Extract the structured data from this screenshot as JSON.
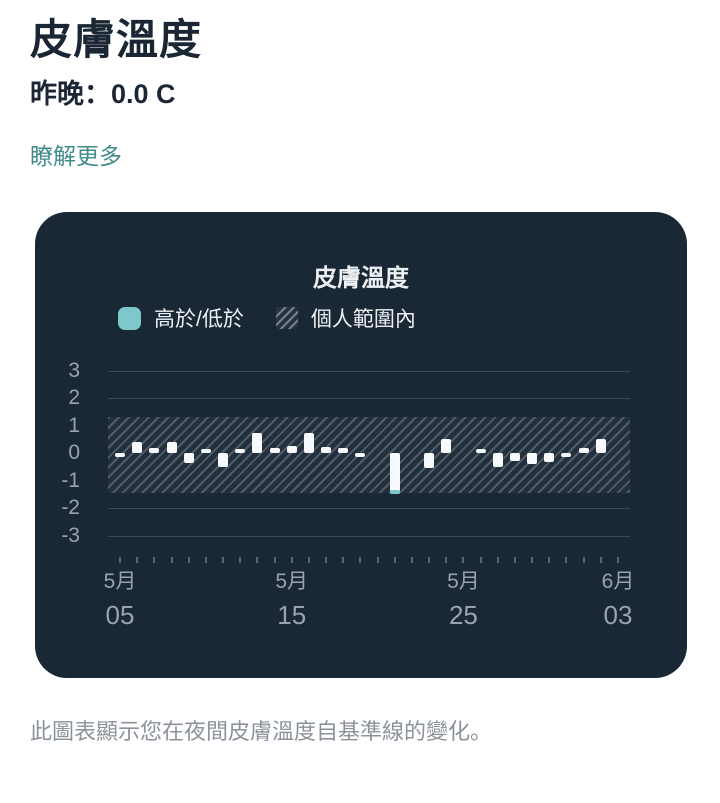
{
  "header": {
    "title": "皮膚溫度",
    "subtitle": "昨晚：0.0 C",
    "link": "瞭解更多"
  },
  "card": {
    "chart_title": "皮膚溫度",
    "legend": [
      {
        "label": "高於/低於",
        "swatch": "teal-square-icon"
      },
      {
        "label": "個人範圍內",
        "swatch": "hatched-square-icon"
      }
    ]
  },
  "chart_data": {
    "type": "bar",
    "title": "皮膚溫度",
    "xlabel": "",
    "ylabel": "",
    "yticks": [
      3,
      2,
      1,
      0,
      -1,
      -2,
      -3
    ],
    "ylim": [
      -3.5,
      3.5
    ],
    "grid": "horizontal lines at 3, 2, -2, -3 only; band covers -1..1 zone",
    "legend_position": "top-left",
    "band": {
      "label": "個人範圍內",
      "max": 1.3,
      "min": -1.45,
      "style": "hatched"
    },
    "x": [
      "5/05",
      "5/06",
      "5/07",
      "5/08",
      "5/09",
      "5/10",
      "5/11",
      "5/12",
      "5/13",
      "5/14",
      "5/15",
      "5/16",
      "5/17",
      "5/18",
      "5/19",
      "5/20",
      "5/21",
      "5/22",
      "5/23",
      "5/24",
      "5/25",
      "5/26",
      "5/27",
      "5/28",
      "5/29",
      "5/30",
      "5/31",
      "6/01",
      "6/02",
      "6/03"
    ],
    "values": [
      -0.06,
      0.4,
      0.2,
      0.4,
      -0.36,
      0.12,
      -0.5,
      0.06,
      0.72,
      0.2,
      0.25,
      0.73,
      0.23,
      0.2,
      -0.1,
      null,
      -1.5,
      null,
      -0.55,
      0.52,
      null,
      0.15,
      -0.5,
      -0.3,
      -0.4,
      -0.33,
      -0.15,
      0.2,
      0.52,
      null
    ],
    "xticks": [
      {
        "index": 0,
        "month": "5月",
        "day": "05"
      },
      {
        "index": 10,
        "month": "5月",
        "day": "15"
      },
      {
        "index": 20,
        "month": "5月",
        "day": "25"
      },
      {
        "index": 29,
        "month": "6月",
        "day": "03"
      }
    ]
  },
  "caption": "此圖表顯示您在夜間皮膚溫度自基準線的變化。",
  "colors": {
    "page_bg": "#ffffff",
    "heading_text": "#1a2633",
    "link_teal": "#418b8b",
    "card_bg": "#1a2836",
    "chart_text": "#eef1f3",
    "axis_text": "#97a3ad",
    "grid_line": "#3c4956",
    "tick_mark": "#5a6773",
    "bar_white": "#f7f9fa",
    "accent_teal": "#7cc8ca",
    "caption_text": "#8b9299"
  }
}
